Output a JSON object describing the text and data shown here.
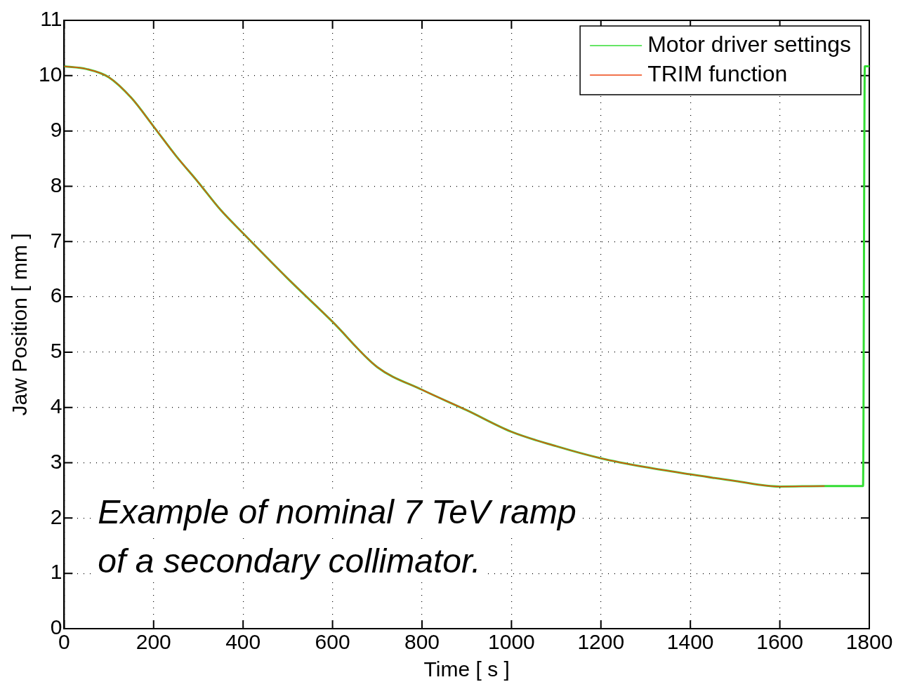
{
  "chart_data": {
    "type": "line",
    "xlabel": "Time [ s ]",
    "ylabel": "Jaw Position [ mm ]",
    "xlim": [
      0,
      1800
    ],
    "xticks": [
      0,
      200,
      400,
      600,
      800,
      1000,
      1200,
      1400,
      1600,
      1800
    ],
    "ylim": [
      0,
      11
    ],
    "yticks": [
      0,
      1,
      2,
      3,
      4,
      5,
      6,
      7,
      8,
      9,
      10,
      11
    ],
    "grid": true,
    "legend": "top right",
    "marker": "none",
    "annotations": [
      "Example of nominal 7 TeV ramp\nof a secondary collimator."
    ],
    "series": [
      {
        "name": "Motor driver settings",
        "color": "#33dd33",
        "x": [
          0,
          50,
          100,
          150,
          200,
          250,
          300,
          350,
          400,
          500,
          600,
          700,
          800,
          900,
          1000,
          1100,
          1200,
          1300,
          1400,
          1500,
          1600,
          1700,
          1786,
          1790,
          1800
        ],
        "values": [
          10.17,
          10.12,
          9.97,
          9.6,
          9.08,
          8.55,
          8.07,
          7.57,
          7.15,
          6.33,
          5.55,
          4.73,
          4.32,
          3.95,
          3.56,
          3.3,
          3.08,
          2.92,
          2.79,
          2.67,
          2.57,
          2.58,
          2.58,
          10.17,
          10.17
        ]
      },
      {
        "name": "TRIM function",
        "color": "#ee4411",
        "x": [
          0,
          50,
          100,
          150,
          200,
          250,
          300,
          350,
          400,
          500,
          600,
          700,
          800,
          900,
          1000,
          1100,
          1200,
          1300,
          1400,
          1500,
          1600,
          1700
        ],
        "values": [
          10.17,
          10.12,
          9.97,
          9.6,
          9.08,
          8.55,
          8.07,
          7.57,
          7.15,
          6.33,
          5.55,
          4.73,
          4.32,
          3.95,
          3.56,
          3.3,
          3.08,
          2.92,
          2.79,
          2.67,
          2.57,
          2.58
        ]
      }
    ]
  }
}
